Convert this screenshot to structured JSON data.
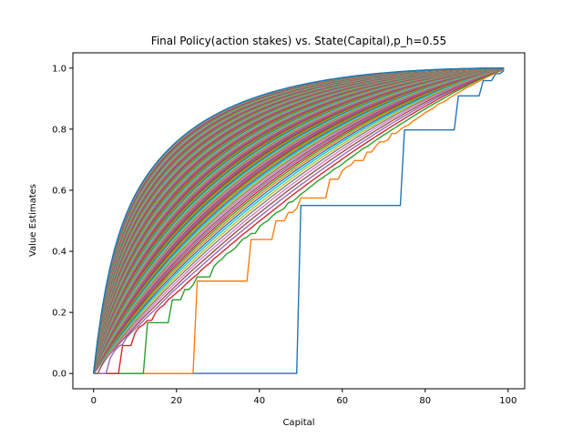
{
  "chart_data": {
    "type": "line",
    "title": "Final Policy(action stakes) vs. State(Capital),p_h=0.55",
    "xlabel": "Capital",
    "ylabel": "Value Estimates",
    "xlim": [
      -5,
      104
    ],
    "ylim": [
      -0.05,
      1.05
    ],
    "xticks": [
      0,
      20,
      40,
      60,
      80,
      100
    ],
    "yticks": [
      0.0,
      0.2,
      0.4,
      0.6,
      0.8,
      1.0
    ],
    "xtick_labels": [
      "0",
      "20",
      "40",
      "60",
      "80",
      "100"
    ],
    "ytick_labels": [
      "0.0",
      "0.2",
      "0.4",
      "0.6",
      "0.8",
      "1.0"
    ],
    "grid": false,
    "legend": "none",
    "p_h": 0.55,
    "capital_max": 99,
    "sweep_count": 130,
    "palette": [
      "#1f77b4",
      "#ff7f0e",
      "#2ca02c",
      "#d62728",
      "#9467bd",
      "#8c564b",
      "#e377c2",
      "#7f7f7f",
      "#bcbd22",
      "#17becf"
    ],
    "final_series_color": "#1f77b4",
    "axes_color": "#000000"
  }
}
